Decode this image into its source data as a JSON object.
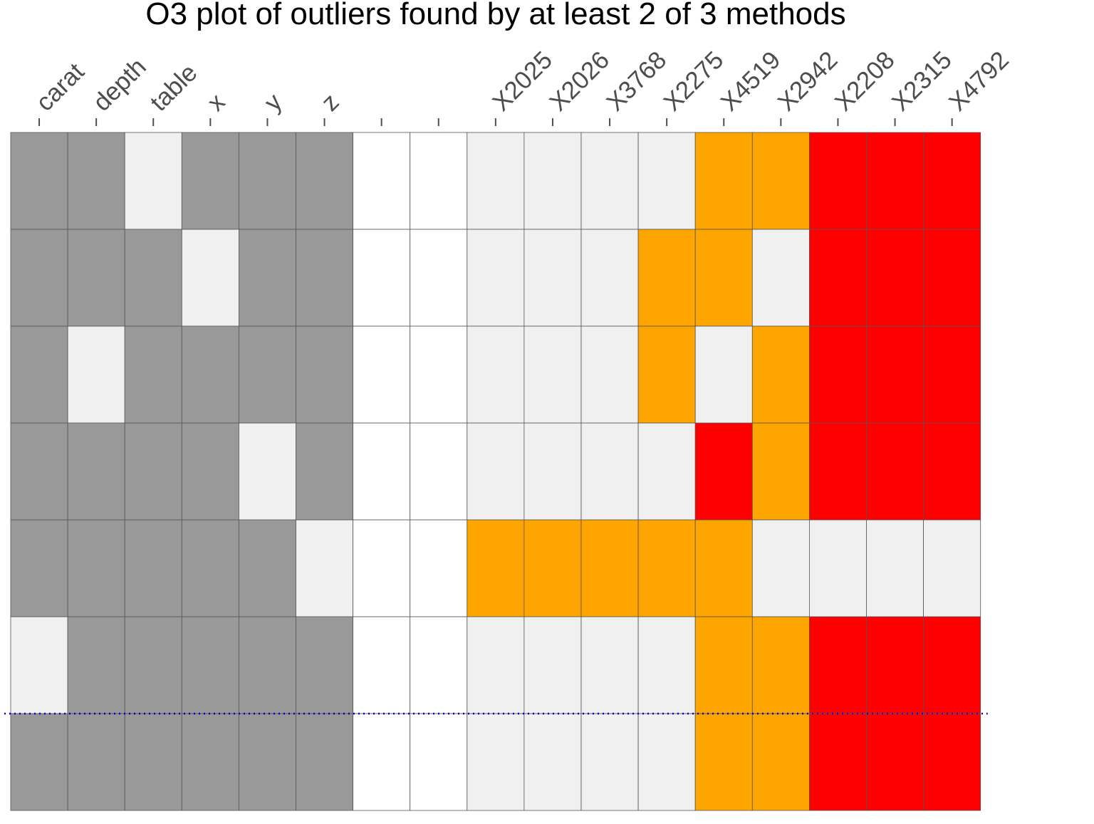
{
  "chart_data": {
    "type": "heatmap",
    "title": "O3 plot of outliers found by at least 2 of 3 methods",
    "columns": [
      "carat",
      "depth",
      "table",
      "x",
      "y",
      "z",
      "",
      "",
      "X2025",
      "X2026",
      "X3768",
      "X2275",
      "X4519",
      "X2942",
      "X2208",
      "X2315",
      "X4792"
    ],
    "legend": {
      "V": "variable included in combination",
      "L": "variable not included",
      "W": "separator",
      "O": "outlier found by 2 of 3 methods",
      "R": "outlier found by all 3 methods"
    },
    "colors": {
      "V": "#999999",
      "L": "#f0f0f0",
      "W": "#ffffff",
      "O": "#ffa500",
      "R": "#ff0000",
      "grid": "#555555",
      "reference_line": "#0000cc",
      "title": "#000000",
      "labels": "#4d4d4d"
    },
    "rows": [
      [
        "V",
        "V",
        "L",
        "V",
        "V",
        "V",
        "W",
        "W",
        "L",
        "L",
        "L",
        "L",
        "O",
        "O",
        "R",
        "R",
        "R"
      ],
      [
        "V",
        "V",
        "V",
        "L",
        "V",
        "V",
        "W",
        "W",
        "L",
        "L",
        "L",
        "O",
        "O",
        "L",
        "R",
        "R",
        "R"
      ],
      [
        "V",
        "L",
        "V",
        "V",
        "V",
        "V",
        "W",
        "W",
        "L",
        "L",
        "L",
        "O",
        "L",
        "O",
        "R",
        "R",
        "R"
      ],
      [
        "V",
        "V",
        "V",
        "V",
        "L",
        "V",
        "W",
        "W",
        "L",
        "L",
        "L",
        "L",
        "R",
        "O",
        "R",
        "R",
        "R"
      ],
      [
        "V",
        "V",
        "V",
        "V",
        "V",
        "L",
        "W",
        "W",
        "O",
        "O",
        "O",
        "O",
        "O",
        "L",
        "L",
        "L",
        "L"
      ],
      [
        "L",
        "V",
        "V",
        "V",
        "V",
        "V",
        "W",
        "W",
        "L",
        "L",
        "L",
        "L",
        "O",
        "O",
        "R",
        "R",
        "R"
      ],
      [
        "V",
        "V",
        "V",
        "V",
        "V",
        "V",
        "W",
        "W",
        "L",
        "L",
        "L",
        "L",
        "O",
        "O",
        "R",
        "R",
        "R"
      ]
    ],
    "reference_line": {
      "after_row": 6,
      "style": "dotted"
    }
  }
}
